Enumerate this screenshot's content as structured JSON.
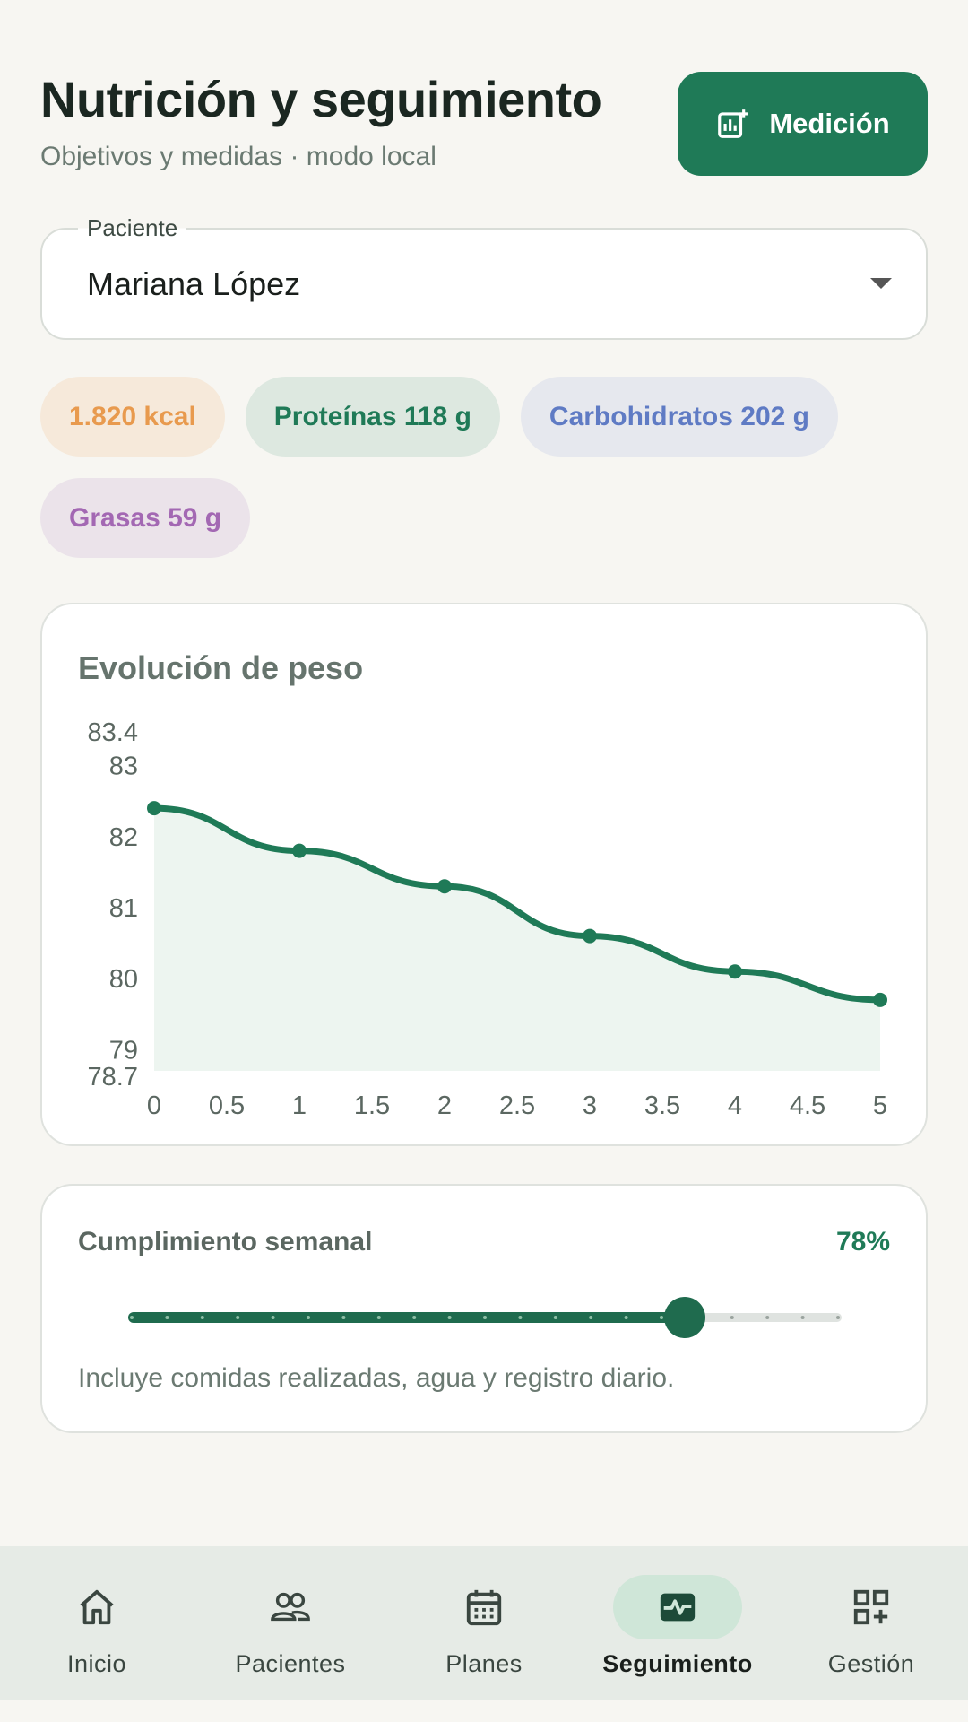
{
  "header": {
    "title": "Nutrición y seguimiento",
    "subtitle": "Objetivos y medidas · modo local",
    "action_label": "Medición"
  },
  "patient": {
    "label": "Paciente",
    "value": "Mariana López"
  },
  "macros": [
    {
      "label": "1.820 kcal"
    },
    {
      "label": "Proteínas 118 g"
    },
    {
      "label": "Carbohidratos 202 g"
    },
    {
      "label": "Grasas 59 g"
    }
  ],
  "chart": {
    "title": "Evolución de peso"
  },
  "chart_data": {
    "type": "area",
    "title": "Evolución de peso",
    "x": [
      0,
      1,
      2,
      3,
      4,
      5
    ],
    "values": [
      82.4,
      81.8,
      81.3,
      80.6,
      80.1,
      79.7
    ],
    "xlim": [
      0,
      5
    ],
    "ylim": [
      78.7,
      83.4
    ],
    "x_ticks": [
      "0",
      "0.5",
      "1",
      "1.5",
      "2",
      "2.5",
      "3",
      "3.5",
      "4",
      "4.5",
      "5"
    ],
    "y_ticks": [
      "83.4",
      "83",
      "82",
      "81",
      "80",
      "79",
      "78.7"
    ],
    "grid": false,
    "color": "#1f7a57",
    "fill": "#edf5f0"
  },
  "progress": {
    "title": "Cumplimiento semanal",
    "value_label": "78%",
    "value": 0.78,
    "note": "Incluye comidas realizadas, agua y registro diario."
  },
  "nav": [
    {
      "label": "Inicio",
      "icon": "home-icon",
      "active": false
    },
    {
      "label": "Pacientes",
      "icon": "people-icon",
      "active": false
    },
    {
      "label": "Planes",
      "icon": "calendar-icon",
      "active": false
    },
    {
      "label": "Seguimiento",
      "icon": "monitor-heart-icon",
      "active": true
    },
    {
      "label": "Gestión",
      "icon": "grid-add-icon",
      "active": false
    }
  ],
  "colors": {
    "primary": "#1f7a57",
    "background": "#f7f6f2"
  }
}
